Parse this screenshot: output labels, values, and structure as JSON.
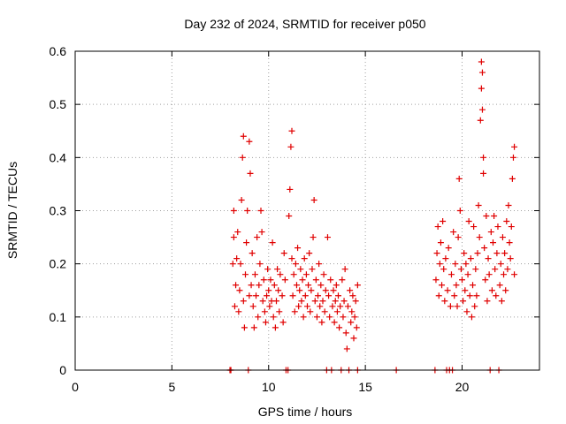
{
  "chart_data": {
    "type": "scatter",
    "title": "Day 232 of 2024, SRMTID for receiver p050",
    "xlabel": "GPS time / hours",
    "ylabel": "SRMTID / TECUs",
    "xlim": [
      0,
      24
    ],
    "ylim": [
      0,
      0.6
    ],
    "xticks": [
      0,
      5,
      10,
      15,
      20
    ],
    "xtick_labels": [
      "0",
      "5",
      "10",
      "15",
      "20"
    ],
    "yticks": [
      0,
      0.1,
      0.2,
      0.3,
      0.4,
      0.5,
      0.6
    ],
    "ytick_labels": [
      "0",
      "0.1",
      "0.2",
      "0.3",
      "0.4",
      "0.5",
      "0.6"
    ],
    "grid": true,
    "marker": "plus",
    "color": "#e00000",
    "series": [
      {
        "name": "SRMTID",
        "points": [
          [
            8.0,
            0.0
          ],
          [
            8.05,
            0.0
          ],
          [
            8.15,
            0.2
          ],
          [
            8.2,
            0.25
          ],
          [
            8.2,
            0.3
          ],
          [
            8.25,
            0.12
          ],
          [
            8.3,
            0.16
          ],
          [
            8.35,
            0.21
          ],
          [
            8.4,
            0.26
          ],
          [
            8.45,
            0.11
          ],
          [
            8.5,
            0.15
          ],
          [
            8.55,
            0.2
          ],
          [
            8.6,
            0.32
          ],
          [
            8.65,
            0.4
          ],
          [
            8.7,
            0.44
          ],
          [
            8.7,
            0.13
          ],
          [
            8.75,
            0.08
          ],
          [
            8.8,
            0.18
          ],
          [
            8.85,
            0.24
          ],
          [
            8.9,
            0.3
          ],
          [
            8.95,
            0.0
          ],
          [
            9.0,
            0.43
          ],
          [
            9.0,
            0.14
          ],
          [
            9.05,
            0.37
          ],
          [
            9.1,
            0.16
          ],
          [
            9.15,
            0.22
          ],
          [
            9.2,
            0.12
          ],
          [
            9.25,
            0.08
          ],
          [
            9.3,
            0.18
          ],
          [
            9.35,
            0.14
          ],
          [
            9.4,
            0.25
          ],
          [
            9.45,
            0.1
          ],
          [
            9.5,
            0.16
          ],
          [
            9.55,
            0.2
          ],
          [
            9.6,
            0.3
          ],
          [
            9.65,
            0.26
          ],
          [
            9.7,
            0.13
          ],
          [
            9.75,
            0.17
          ],
          [
            9.8,
            0.11
          ],
          [
            9.85,
            0.09
          ],
          [
            9.9,
            0.14
          ],
          [
            9.95,
            0.19
          ],
          [
            10.0,
            0.15
          ],
          [
            10.05,
            0.12
          ],
          [
            10.1,
            0.17
          ],
          [
            10.15,
            0.13
          ],
          [
            10.2,
            0.24
          ],
          [
            10.25,
            0.1
          ],
          [
            10.3,
            0.16
          ],
          [
            10.35,
            0.08
          ],
          [
            10.4,
            0.13
          ],
          [
            10.45,
            0.19
          ],
          [
            10.5,
            0.15
          ],
          [
            10.55,
            0.11
          ],
          [
            10.6,
            0.18
          ],
          [
            10.7,
            0.14
          ],
          [
            10.75,
            0.09
          ],
          [
            10.8,
            0.22
          ],
          [
            10.85,
            0.17
          ],
          [
            10.9,
            0.0
          ],
          [
            11.0,
            0.0
          ],
          [
            11.05,
            0.29
          ],
          [
            11.1,
            0.34
          ],
          [
            11.15,
            0.42
          ],
          [
            11.2,
            0.45
          ],
          [
            11.2,
            0.21
          ],
          [
            11.25,
            0.14
          ],
          [
            11.3,
            0.18
          ],
          [
            11.35,
            0.11
          ],
          [
            11.4,
            0.2
          ],
          [
            11.45,
            0.16
          ],
          [
            11.5,
            0.23
          ],
          [
            11.55,
            0.12
          ],
          [
            11.6,
            0.15
          ],
          [
            11.65,
            0.19
          ],
          [
            11.7,
            0.13
          ],
          [
            11.75,
            0.17
          ],
          [
            11.8,
            0.1
          ],
          [
            11.85,
            0.21
          ],
          [
            11.9,
            0.14
          ],
          [
            11.95,
            0.18
          ],
          [
            12.0,
            0.12
          ],
          [
            12.05,
            0.16
          ],
          [
            12.1,
            0.22
          ],
          [
            12.15,
            0.11
          ],
          [
            12.2,
            0.15
          ],
          [
            12.25,
            0.19
          ],
          [
            12.3,
            0.25
          ],
          [
            12.35,
            0.32
          ],
          [
            12.4,
            0.13
          ],
          [
            12.45,
            0.17
          ],
          [
            12.5,
            0.1
          ],
          [
            12.55,
            0.14
          ],
          [
            12.6,
            0.2
          ],
          [
            12.65,
            0.12
          ],
          [
            12.7,
            0.16
          ],
          [
            12.75,
            0.09
          ],
          [
            12.8,
            0.13
          ],
          [
            12.85,
            0.18
          ],
          [
            12.9,
            0.11
          ],
          [
            12.95,
            0.15
          ],
          [
            13.0,
            0.0
          ],
          [
            13.05,
            0.25
          ],
          [
            13.1,
            0.14
          ],
          [
            13.15,
            0.1
          ],
          [
            13.2,
            0.17
          ],
          [
            13.25,
            0.0
          ],
          [
            13.3,
            0.12
          ],
          [
            13.35,
            0.15
          ],
          [
            13.4,
            0.09
          ],
          [
            13.45,
            0.13
          ],
          [
            13.5,
            0.16
          ],
          [
            13.55,
            0.11
          ],
          [
            13.6,
            0.14
          ],
          [
            13.65,
            0.08
          ],
          [
            13.7,
            0.12
          ],
          [
            13.75,
            0.0
          ],
          [
            13.8,
            0.17
          ],
          [
            13.85,
            0.1
          ],
          [
            13.9,
            0.13
          ],
          [
            13.95,
            0.19
          ],
          [
            14.0,
            0.07
          ],
          [
            14.05,
            0.04
          ],
          [
            14.1,
            0.12
          ],
          [
            14.15,
            0.0
          ],
          [
            14.2,
            0.15
          ],
          [
            14.25,
            0.09
          ],
          [
            14.3,
            0.11
          ],
          [
            14.35,
            0.14
          ],
          [
            14.4,
            0.06
          ],
          [
            14.45,
            0.1
          ],
          [
            14.5,
            0.13
          ],
          [
            14.55,
            0.08
          ],
          [
            14.6,
            0.16
          ],
          [
            14.6,
            0.0
          ],
          [
            16.6,
            0.0
          ],
          [
            18.6,
            0.0
          ],
          [
            18.65,
            0.17
          ],
          [
            18.7,
            0.22
          ],
          [
            18.75,
            0.27
          ],
          [
            18.8,
            0.14
          ],
          [
            18.85,
            0.2
          ],
          [
            18.9,
            0.24
          ],
          [
            18.95,
            0.16
          ],
          [
            19.0,
            0.28
          ],
          [
            19.05,
            0.19
          ],
          [
            19.1,
            0.13
          ],
          [
            19.15,
            0.21
          ],
          [
            19.2,
            0.0
          ],
          [
            19.25,
            0.15
          ],
          [
            19.3,
            0.23
          ],
          [
            19.35,
            0.0
          ],
          [
            19.4,
            0.12
          ],
          [
            19.45,
            0.18
          ],
          [
            19.5,
            0.0
          ],
          [
            19.55,
            0.26
          ],
          [
            19.6,
            0.14
          ],
          [
            19.65,
            0.2
          ],
          [
            19.7,
            0.16
          ],
          [
            19.75,
            0.12
          ],
          [
            19.8,
            0.25
          ],
          [
            19.85,
            0.36
          ],
          [
            19.9,
            0.3
          ],
          [
            19.95,
            0.19
          ],
          [
            20.0,
            0.17
          ],
          [
            20.05,
            0.13
          ],
          [
            20.1,
            0.22
          ],
          [
            20.15,
            0.15
          ],
          [
            20.2,
            0.2
          ],
          [
            20.25,
            0.11
          ],
          [
            20.3,
            0.18
          ],
          [
            20.35,
            0.28
          ],
          [
            20.4,
            0.14
          ],
          [
            20.45,
            0.21
          ],
          [
            20.5,
            0.1
          ],
          [
            20.55,
            0.16
          ],
          [
            20.6,
            0.27
          ],
          [
            20.65,
            0.12
          ],
          [
            20.7,
            0.19
          ],
          [
            20.75,
            0.14
          ],
          [
            20.8,
            0.22
          ],
          [
            20.85,
            0.31
          ],
          [
            20.9,
            0.25
          ],
          [
            20.95,
            0.47
          ],
          [
            21.0,
            0.53
          ],
          [
            21.0,
            0.58
          ],
          [
            21.05,
            0.56
          ],
          [
            21.05,
            0.49
          ],
          [
            21.1,
            0.4
          ],
          [
            21.1,
            0.37
          ],
          [
            21.15,
            0.23
          ],
          [
            21.2,
            0.17
          ],
          [
            21.25,
            0.29
          ],
          [
            21.3,
            0.13
          ],
          [
            21.35,
            0.21
          ],
          [
            21.4,
            0.18
          ],
          [
            21.45,
            0.0
          ],
          [
            21.5,
            0.26
          ],
          [
            21.55,
            0.15
          ],
          [
            21.6,
            0.24
          ],
          [
            21.65,
            0.29
          ],
          [
            21.7,
            0.19
          ],
          [
            21.75,
            0.14
          ],
          [
            21.8,
            0.22
          ],
          [
            21.85,
            0.27
          ],
          [
            21.9,
            0.0
          ],
          [
            21.95,
            0.16
          ],
          [
            22.0,
            0.2
          ],
          [
            22.05,
            0.13
          ],
          [
            22.1,
            0.25
          ],
          [
            22.15,
            0.18
          ],
          [
            22.2,
            0.22
          ],
          [
            22.25,
            0.15
          ],
          [
            22.3,
            0.28
          ],
          [
            22.35,
            0.19
          ],
          [
            22.4,
            0.31
          ],
          [
            22.45,
            0.24
          ],
          [
            22.5,
            0.21
          ],
          [
            22.55,
            0.27
          ],
          [
            22.6,
            0.36
          ],
          [
            22.65,
            0.4
          ],
          [
            22.7,
            0.42
          ],
          [
            22.7,
            0.18
          ]
        ]
      }
    ]
  }
}
